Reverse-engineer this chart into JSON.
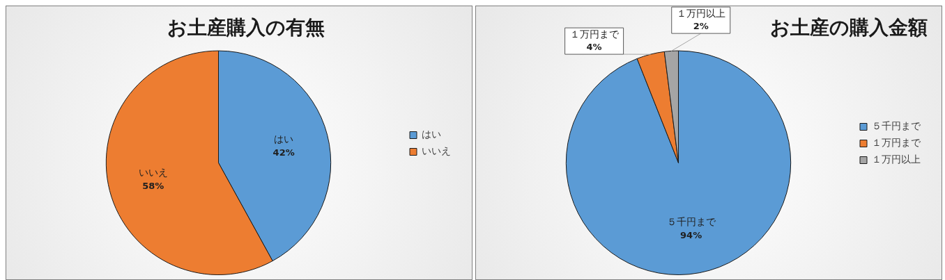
{
  "chart_data": [
    {
      "type": "pie",
      "title": "お土産購入の有無",
      "categories": [
        "はい",
        "いいえ"
      ],
      "values": [
        42,
        58
      ],
      "colors": [
        "#5b9bd5",
        "#ed7d31"
      ],
      "value_labels": [
        "42%",
        "58%"
      ],
      "legend": "right"
    },
    {
      "type": "pie",
      "title": "お土産の購入金額",
      "categories": [
        "５千円まで",
        "１万円まで",
        "１万円以上"
      ],
      "values": [
        94,
        4,
        2
      ],
      "colors": [
        "#5b9bd5",
        "#ed7d31",
        "#a5a5a5"
      ],
      "value_labels": [
        "94%",
        "4%",
        "2%"
      ],
      "legend": "right"
    }
  ]
}
